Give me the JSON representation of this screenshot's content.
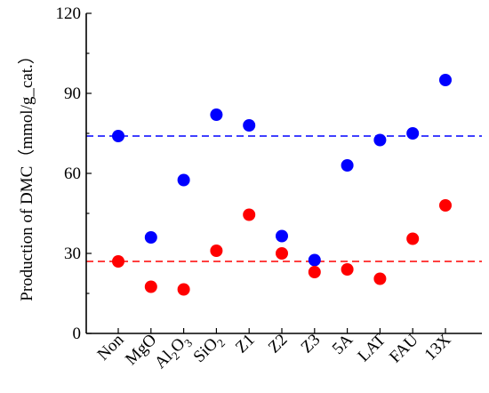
{
  "chart_data": {
    "type": "scatter",
    "title": "",
    "xlabel": "",
    "ylabel": "Production of DMC（mmol/g_cat.）",
    "ylim": [
      0,
      120
    ],
    "yticks": [
      0,
      30,
      60,
      90,
      120
    ],
    "grid": false,
    "legend": "none",
    "categories": [
      "Non",
      "MgO",
      "Al2O3",
      "SiO2",
      "Z1",
      "Z2",
      "Z3",
      "5A",
      "LAT",
      "FAU",
      "13X"
    ],
    "category_labels": [
      {
        "base": "Non"
      },
      {
        "base": "MgO"
      },
      {
        "base": "Al",
        "sub1": "2",
        "mid": "O",
        "sub2": "3"
      },
      {
        "base": "SiO",
        "sub1": "2"
      },
      {
        "base": "Z1"
      },
      {
        "base": "Z2"
      },
      {
        "base": "Z3"
      },
      {
        "base": "5A"
      },
      {
        "base": "LAT"
      },
      {
        "base": "FAU"
      },
      {
        "base": "13X"
      }
    ],
    "series": [
      {
        "color": "#0000ff",
        "values": [
          74,
          36,
          57.5,
          82,
          78,
          36.5,
          27.5,
          63,
          72.5,
          75,
          95
        ]
      },
      {
        "color": "#ff0000",
        "values": [
          27,
          17.5,
          16.5,
          31,
          44.5,
          30,
          23,
          24,
          20.5,
          35.5,
          48
        ]
      }
    ],
    "reference_lines": [
      {
        "value": 74,
        "color": "#0000ff",
        "style": "dashed"
      },
      {
        "value": 27,
        "color": "#ff0000",
        "style": "dashed"
      }
    ]
  }
}
